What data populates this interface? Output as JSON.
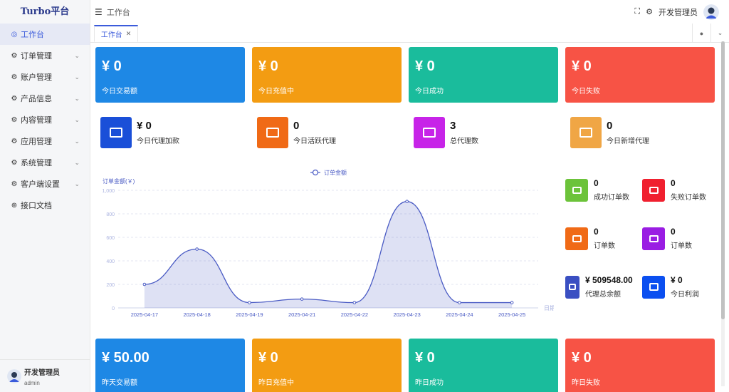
{
  "app": {
    "logo": "Turbo平台"
  },
  "header": {
    "breadcrumb": "工作台",
    "user_name": "开发管理员"
  },
  "sidebar": {
    "items": [
      {
        "label": "工作台",
        "icon": "dashboard-icon",
        "active": true,
        "expandable": false
      },
      {
        "label": "订单管理",
        "icon": "gear-icon",
        "expandable": true
      },
      {
        "label": "账户管理",
        "icon": "gear-icon",
        "expandable": true
      },
      {
        "label": "产品信息",
        "icon": "gear-icon",
        "expandable": true
      },
      {
        "label": "内容管理",
        "icon": "gear-icon",
        "expandable": true
      },
      {
        "label": "应用管理",
        "icon": "gear-icon",
        "expandable": true
      },
      {
        "label": "系统管理",
        "icon": "gear-icon",
        "expandable": true
      },
      {
        "label": "客户端设置",
        "icon": "gear-icon",
        "expandable": true
      },
      {
        "label": "接口文档",
        "icon": "globe-icon",
        "expandable": false
      }
    ],
    "user": {
      "name": "开发管理员",
      "role": "admin"
    }
  },
  "tabs": [
    {
      "label": "工作台",
      "active": true
    }
  ],
  "today_cards": [
    {
      "amount": "¥ 0",
      "label": "今日交易额"
    },
    {
      "amount": "¥ 0",
      "label": "今日充值中"
    },
    {
      "amount": "¥ 0",
      "label": "今日成功"
    },
    {
      "amount": "¥ 0",
      "label": "今日失败"
    }
  ],
  "agent_stats": [
    {
      "value": "¥ 0",
      "label": "今日代理加款",
      "color": "#1a4fd8"
    },
    {
      "value": "0",
      "label": "今日活跃代理",
      "color": "#f06a16"
    },
    {
      "value": "3",
      "label": "总代理数",
      "color": "#c724e8"
    },
    {
      "value": "0",
      "label": "今日新增代理",
      "color": "#f0a645"
    }
  ],
  "order_stats": [
    {
      "value": "0",
      "label": "成功订单数",
      "color": "#6cc33a"
    },
    {
      "value": "0",
      "label": "失败订单数",
      "color": "#f0202f"
    },
    {
      "value": "0",
      "label": "订单数",
      "color": "#f06a16"
    },
    {
      "value": "0",
      "label": "订单数",
      "color": "#9a1de3"
    },
    {
      "value": "¥ 509548.00",
      "label": "代理总余额",
      "color": "#3a4fc2"
    },
    {
      "value": "¥ 0",
      "label": "今日利润",
      "color": "#0b4ff0"
    }
  ],
  "yesterday_cards": [
    {
      "amount": "¥ 50.00",
      "label": "昨天交易额"
    },
    {
      "amount": "¥ 0",
      "label": "昨日充值中"
    },
    {
      "amount": "¥ 0",
      "label": "昨日成功"
    },
    {
      "amount": "¥ 0",
      "label": "昨日失败"
    }
  ],
  "colors": {
    "accent": "#3b5bdb",
    "blue": "#1e88e5",
    "orange": "#f39c12",
    "teal": "#1abc9c",
    "red": "#f75345",
    "line": "#4a5bc4"
  },
  "chart_data": {
    "type": "area",
    "legend": "订单金额",
    "ylabel": "订单金额(￥)",
    "xlabel": "日期",
    "categories": [
      "2025-04-17",
      "2025-04-18",
      "2025-04-19",
      "2025-04-21",
      "2025-04-22",
      "2025-04-23",
      "2025-04-24",
      "2025-04-25"
    ],
    "series": [
      {
        "name": "订单金额",
        "values": [
          200,
          500,
          45,
          75,
          45,
          905,
          45,
          45
        ]
      }
    ],
    "ylim": [
      0,
      1000
    ],
    "yticks": [
      "0",
      "200",
      "400",
      "600",
      "800",
      "1,000"
    ],
    "grid": true,
    "legend_position": "top-center"
  }
}
